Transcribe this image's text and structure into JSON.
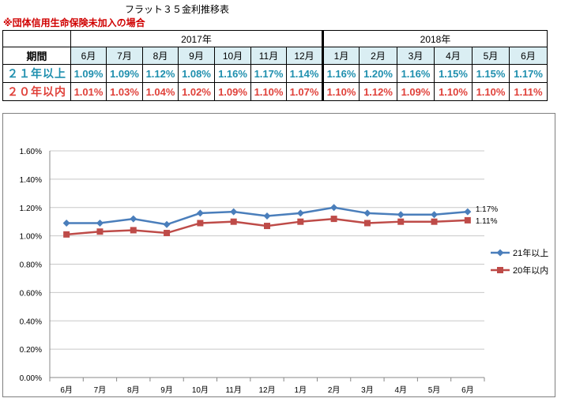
{
  "page": {
    "title": "フラット３５金利推移表",
    "note": "※団体信用生命保険未加入の場合"
  },
  "table": {
    "period_label": "期間",
    "year_groups": [
      {
        "year": "2017年",
        "months": [
          "6月",
          "7月",
          "8月",
          "9月",
          "10月",
          "11月",
          "12月"
        ]
      },
      {
        "year": "2018年",
        "months": [
          "1月",
          "2月",
          "3月",
          "4月",
          "5月",
          "6月"
        ]
      }
    ],
    "rows": [
      {
        "label": "２１年以上",
        "values": [
          "1.09%",
          "1.09%",
          "1.12%",
          "1.08%",
          "1.16%",
          "1.17%",
          "1.14%",
          "1.16%",
          "1.20%",
          "1.16%",
          "1.15%",
          "1.15%",
          "1.17%"
        ]
      },
      {
        "label": "２０年以内",
        "values": [
          "1.01%",
          "1.03%",
          "1.04%",
          "1.02%",
          "1.09%",
          "1.10%",
          "1.07%",
          "1.10%",
          "1.12%",
          "1.09%",
          "1.10%",
          "1.10%",
          "1.11%"
        ]
      }
    ]
  },
  "chart_data": {
    "type": "line",
    "title": "",
    "xlabel": "",
    "ylabel": "",
    "categories": [
      "6月",
      "7月",
      "8月",
      "9月",
      "10月",
      "11月",
      "12月",
      "1月",
      "2月",
      "3月",
      "4月",
      "5月",
      "6月"
    ],
    "ylim": [
      0,
      0.016
    ],
    "yticks": [
      "0.00%",
      "0.20%",
      "0.40%",
      "0.60%",
      "0.80%",
      "1.00%",
      "1.20%",
      "1.40%",
      "1.60%"
    ],
    "grid": "horizontal",
    "legend_position": "right",
    "series": [
      {
        "name": "21年以上",
        "color": "#4a7ebb",
        "marker": "diamond",
        "values": [
          0.0109,
          0.0109,
          0.0112,
          0.0108,
          0.0116,
          0.0117,
          0.0114,
          0.0116,
          0.012,
          0.0116,
          0.0115,
          0.0115,
          0.0117
        ],
        "end_label": "1.17%"
      },
      {
        "name": "20年以内",
        "color": "#be4b48",
        "marker": "square",
        "values": [
          0.0101,
          0.0103,
          0.0104,
          0.0102,
          0.0109,
          0.011,
          0.0107,
          0.011,
          0.0112,
          0.0109,
          0.011,
          0.011,
          0.0111
        ],
        "end_label": "1.11%"
      }
    ]
  }
}
